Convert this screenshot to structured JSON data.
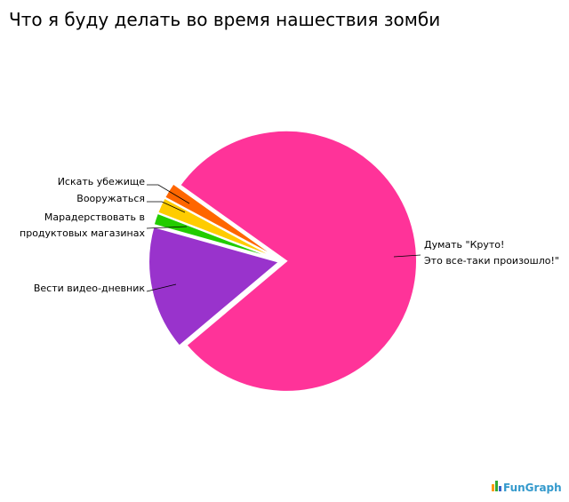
{
  "chart_data": {
    "type": "pie",
    "title": "Что я буду делать во время нашествия зомби",
    "categories": [
      [
        "Думать \"Круто!",
        "Это все-таки произошло!\""
      ],
      [
        "Вести видео-дневник"
      ],
      [
        "Марадерствовать в",
        "продуктовых магазинах"
      ],
      [
        "Вооружаться"
      ],
      [
        "Искать убежище"
      ]
    ],
    "values": [
      79,
      15.5,
      1.5,
      2,
      2
    ],
    "colors": [
      "#ff3399",
      "#9933cc",
      "#22cc00",
      "#ffcc00",
      "#ff6600"
    ],
    "watermark": "FunGraph"
  }
}
